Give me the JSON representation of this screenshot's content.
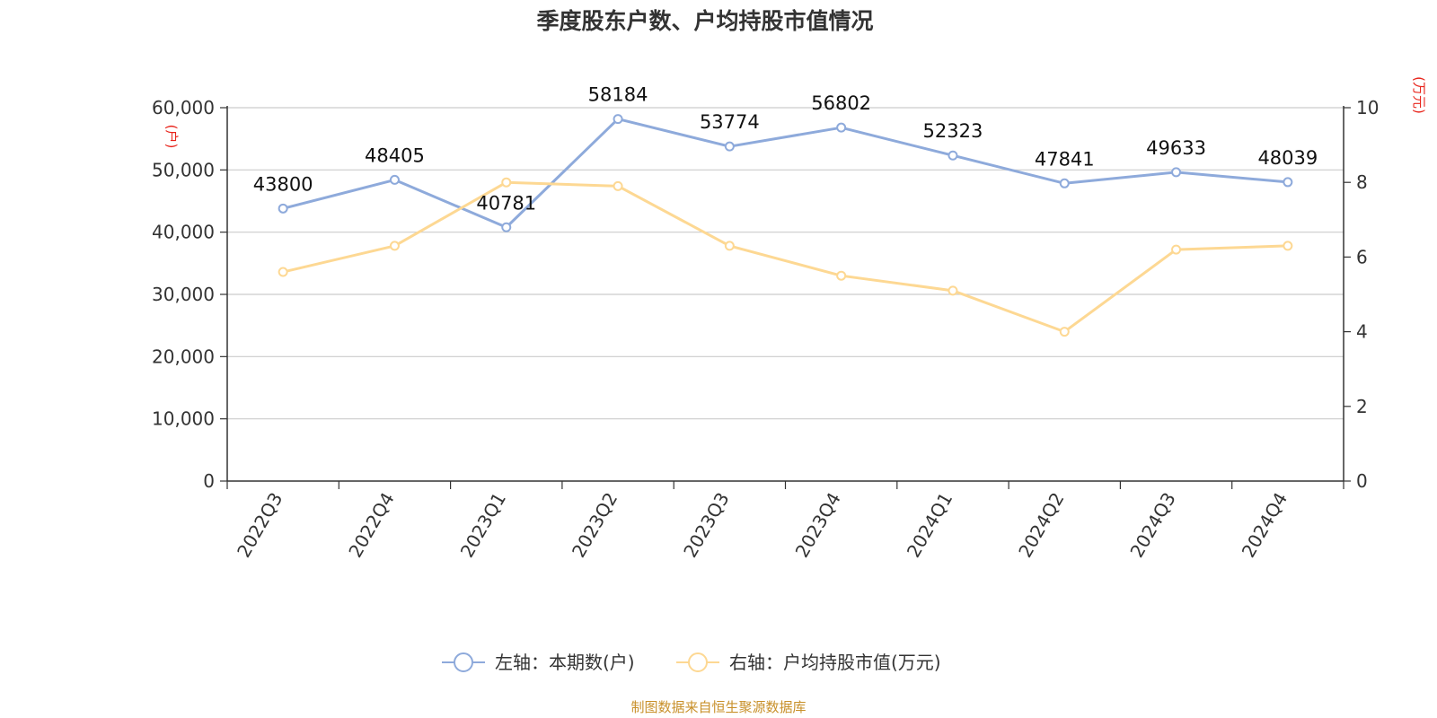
{
  "chart_data": {
    "type": "line",
    "title": "季度股东户数、户均持股市值情况",
    "categories": [
      "2022Q3",
      "2022Q4",
      "2023Q1",
      "2023Q2",
      "2023Q3",
      "2023Q4",
      "2024Q1",
      "2024Q2",
      "2024Q3",
      "2024Q4"
    ],
    "series": [
      {
        "name": "左轴：本期数(户)",
        "axis": "left",
        "color": "#8eaadb",
        "values": [
          43800,
          48405,
          40781,
          58184,
          53774,
          56802,
          52323,
          47841,
          49633,
          48039
        ],
        "data_labels": [
          "43800",
          "48405",
          "40781",
          "58184",
          "53774",
          "56802",
          "52323",
          "47841",
          "49633",
          "48039"
        ]
      },
      {
        "name": "右轴：户均持股市值(万元)",
        "axis": "right",
        "color": "#fdd893",
        "values": [
          5.6,
          6.3,
          8.0,
          7.9,
          6.3,
          5.5,
          5.1,
          4.0,
          6.2,
          6.3
        ]
      }
    ],
    "left_axis": {
      "unit": "(户)",
      "range": [
        0,
        60000
      ],
      "ticks": [
        0,
        10000,
        20000,
        30000,
        40000,
        50000,
        60000
      ],
      "tick_labels": [
        "0",
        "10,000",
        "20,000",
        "30,000",
        "40,000",
        "50,000",
        "60,000"
      ]
    },
    "right_axis": {
      "unit": "(万元)",
      "range": [
        0,
        10
      ],
      "ticks": [
        0,
        2,
        4,
        6,
        8,
        10
      ],
      "tick_labels": [
        "0",
        "2",
        "4",
        "6",
        "8",
        "10"
      ]
    },
    "grid": true,
    "legend_position": "bottom-center"
  },
  "source": "制图数据来自恒生聚源数据库",
  "colors": {
    "axis": "#333333",
    "grid": "#cccccc",
    "unit": "#e8251c",
    "source": "#c8902a"
  }
}
